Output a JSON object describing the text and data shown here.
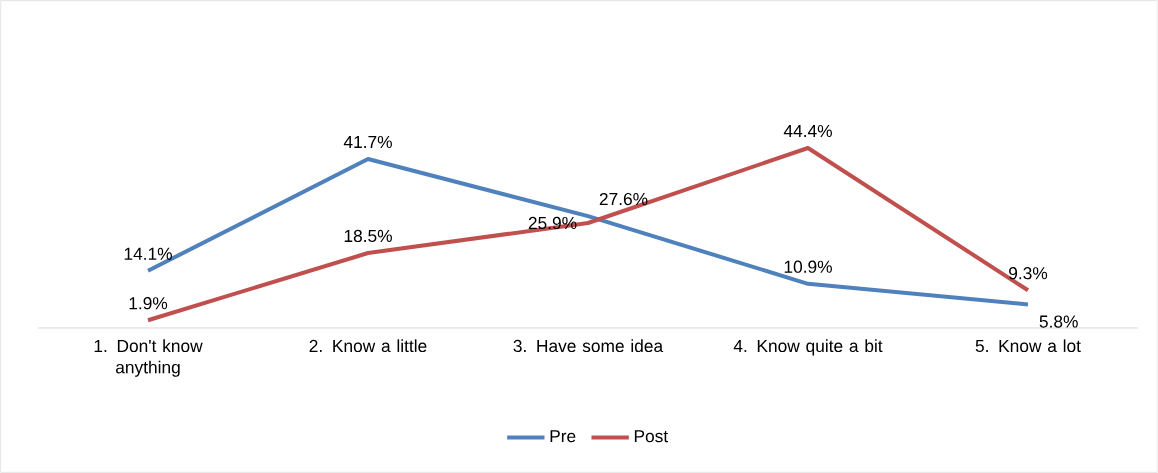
{
  "chart_data": {
    "type": "line",
    "categories": [
      "1. Don't know anything",
      "2. Know a little",
      "3. Have some idea",
      "4. Know quite a bit",
      "5. Know a lot"
    ],
    "series": [
      {
        "name": "Pre",
        "color": "#4f81bd",
        "values": [
          14.1,
          41.7,
          27.6,
          10.9,
          5.8
        ],
        "value_labels": [
          "14.1%",
          "41.7%",
          "27.6%",
          "10.9%",
          "5.8%"
        ]
      },
      {
        "name": "Post",
        "color": "#c0504d",
        "values": [
          1.9,
          18.5,
          25.9,
          44.4,
          9.3
        ],
        "value_labels": [
          "1.9%",
          "18.5%",
          "25.9%",
          "44.4%",
          "9.3%"
        ]
      }
    ],
    "legend": "bottom",
    "grid": false,
    "marker": "none",
    "line_style": "solid"
  }
}
